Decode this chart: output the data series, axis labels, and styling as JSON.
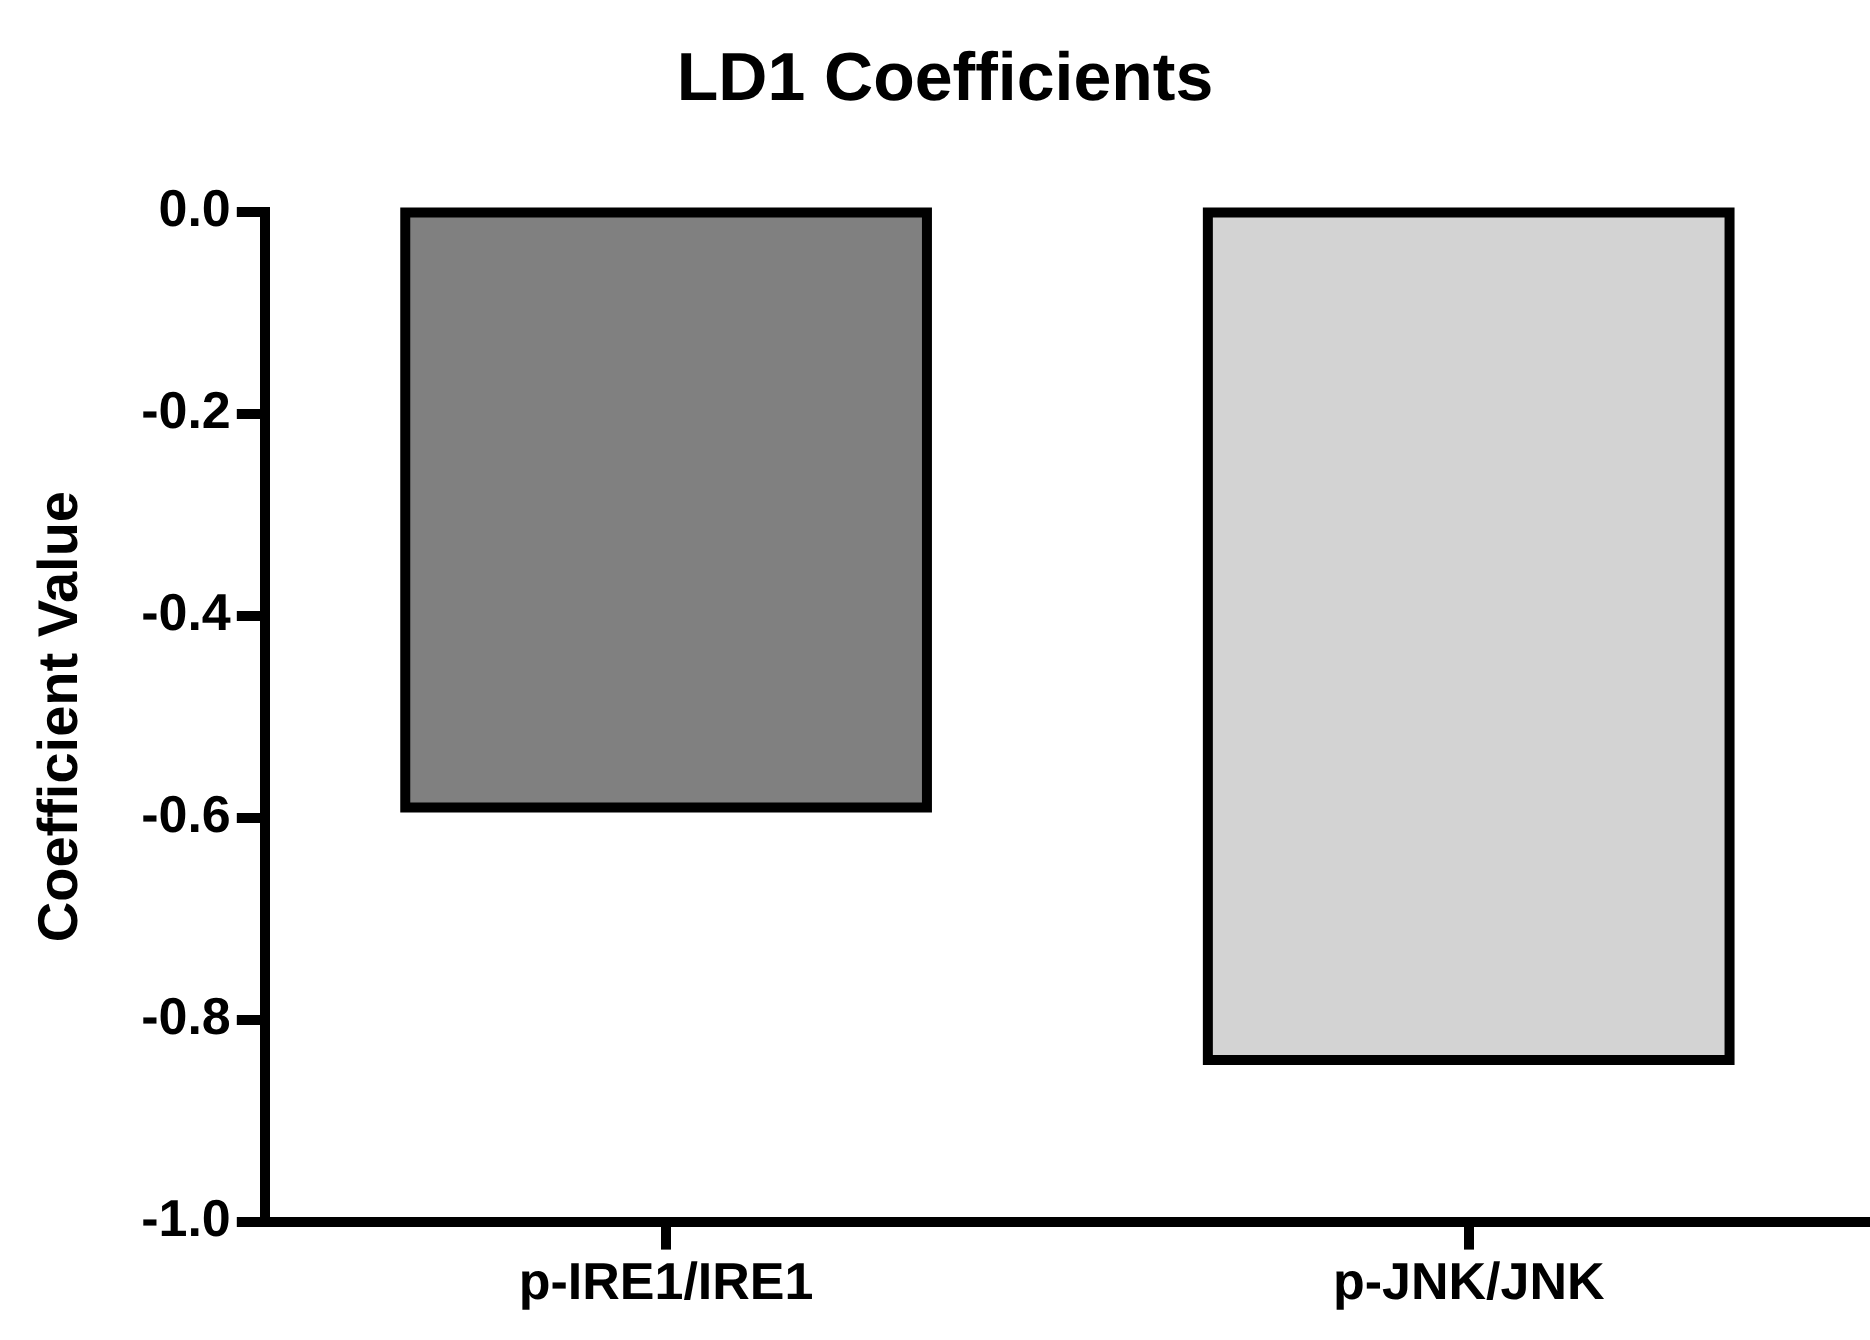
{
  "chart_data": {
    "type": "bar",
    "title": "LD1 Coefficients",
    "ylabel": "Coefficient Value",
    "categories": [
      "p-IRE1/IRE1",
      "p-JNK/JNK"
    ],
    "values": [
      -0.59,
      -0.84
    ],
    "colors": [
      "#808080",
      "#d3d3d3"
    ],
    "ylim": [
      -1.0,
      0.0
    ],
    "yticks": [
      {
        "value": -1.0,
        "label": "-1.0"
      },
      {
        "value": -0.8,
        "label": "-0.8"
      },
      {
        "value": -0.6,
        "label": "-0.6"
      },
      {
        "value": -0.4,
        "label": "-0.4"
      },
      {
        "value": -0.2,
        "label": "-0.2"
      },
      {
        "value": 0.0,
        "label": "0.0"
      }
    ],
    "grid": false,
    "legend": false
  }
}
